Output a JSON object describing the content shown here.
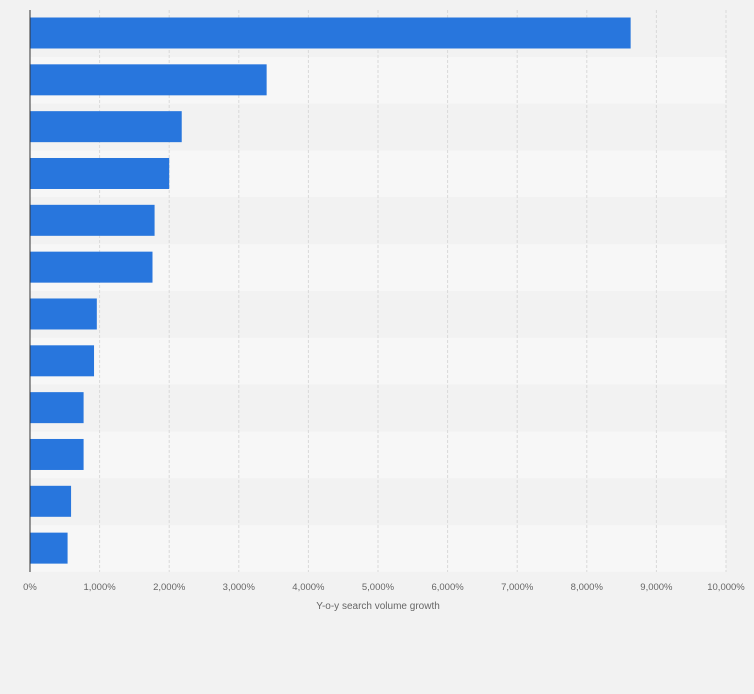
{
  "chart_data": {
    "type": "bar",
    "orientation": "horizontal",
    "categories": [
      "",
      "",
      "",
      "",
      "",
      "",
      "",
      "",
      "",
      "",
      "",
      ""
    ],
    "values": [
      8630,
      3400,
      2180,
      2000,
      1790,
      1760,
      960,
      920,
      770,
      770,
      590,
      540
    ],
    "xlabel": "Y-o-y search volume growth",
    "ylabel": "",
    "xlim": [
      0,
      10000
    ],
    "x_ticks": [
      0,
      1000,
      2000,
      3000,
      4000,
      5000,
      6000,
      7000,
      8000,
      9000,
      10000
    ],
    "x_tick_labels": [
      "0%",
      "1,000%",
      "2,000%",
      "3,000%",
      "4,000%",
      "5,000%",
      "6,000%",
      "7,000%",
      "8,000%",
      "9,000%",
      "10,000%"
    ],
    "grid": true,
    "legend": "none",
    "colors": {
      "bar": "#2876dd",
      "background": "#f2f2f2",
      "band_light": "#f7f7f7",
      "band_dark": "#f2f2f2",
      "grid": "#d9d9d9",
      "axis": "#333333",
      "tick_text": "#666666"
    }
  }
}
